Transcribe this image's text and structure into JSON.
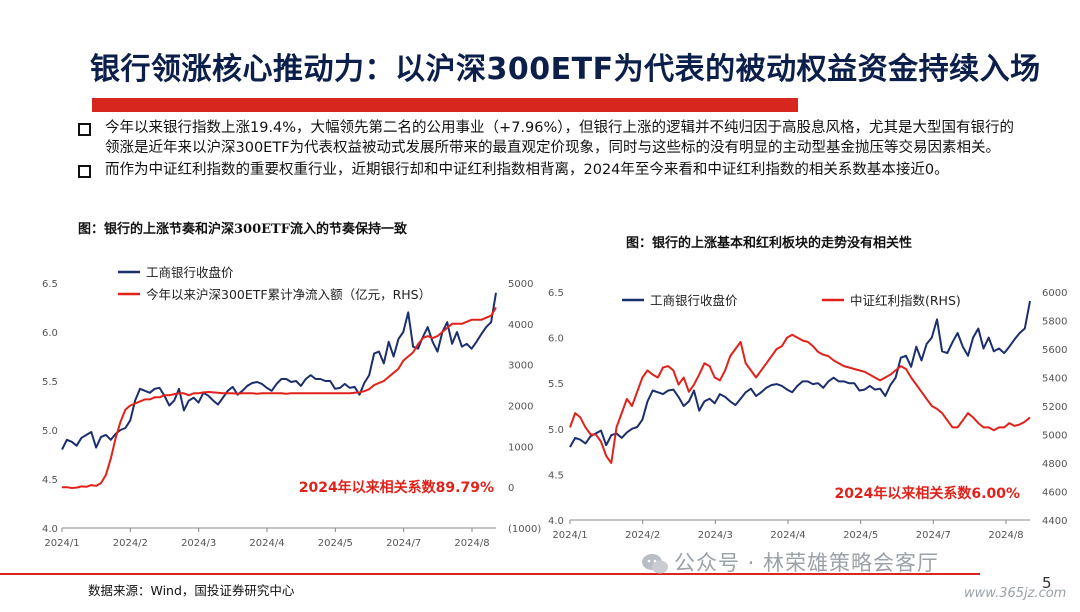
{
  "title": "银行领涨核心推动力：以沪深300ETF为代表的被动权益资金持续入场",
  "bullets": [
    "今年以来银行指数上涨19.4%，大幅领先第二名的公用事业（+7.96%），但银行上涨的逻辑并不纯归因于高股息风格，尤其是大型国有银行的领涨是近年来以沪深300ETF为代表权益被动式发展所带来的最直观定价现象，同时与这些标的没有明显的主动型基金抛压等交易因素相关。",
    "而作为中证红利指数的重要权重行业，近期银行却和中证红利指数相背离，2024年至今来看和中证红利指数的相关系数基本接近0。"
  ],
  "chart1_title": "图：银行的上涨节奏和沪深300ETF流入的节奏保持一致",
  "chart2_title": "图：银行的上涨基本和红利板块的走势没有相关性",
  "source": "数据来源：Wind，国投证券研究中心",
  "watermark": "公众号 · 林荣雄策略会客厅",
  "site": "www.365jz.com",
  "page": "5",
  "colors": {
    "navy": "#1b2f6e",
    "red": "#e0221b",
    "title_bar": "#d7261e",
    "title_text": "#0b1f4a"
  },
  "chart_data": [
    {
      "type": "line",
      "title": "图：银行的上涨节奏和沪深300ETF流入的节奏保持一致",
      "x_ticks": [
        "2024/1",
        "2024/2",
        "2024/3",
        "2024/4",
        "2024/5",
        "2024/7",
        "2024/8"
      ],
      "y_left": {
        "lim": [
          4.0,
          6.5
        ],
        "ticks": [
          "4.0",
          "4.5",
          "5.0",
          "5.5",
          "6.0",
          "6.5"
        ]
      },
      "y_right": {
        "lim": [
          -1000,
          5000
        ],
        "ticks": [
          "(1000)",
          "0",
          "1000",
          "2000",
          "3000",
          "4000",
          "5000"
        ]
      },
      "annotation": "2024年以来相关系数89.79%",
      "legend_position": "top-left",
      "series": [
        {
          "name": "工商银行收盘价",
          "axis": "left",
          "color": "#1b2f6e",
          "values": [
            4.8,
            4.9,
            4.88,
            4.84,
            4.92,
            4.95,
            4.98,
            4.82,
            4.93,
            4.95,
            4.9,
            4.96,
            5.0,
            5.02,
            5.1,
            5.3,
            5.42,
            5.4,
            5.38,
            5.42,
            5.43,
            5.35,
            5.25,
            5.3,
            5.42,
            5.2,
            5.3,
            5.33,
            5.28,
            5.38,
            5.35,
            5.3,
            5.26,
            5.33,
            5.4,
            5.44,
            5.36,
            5.4,
            5.45,
            5.48,
            5.49,
            5.47,
            5.43,
            5.4,
            5.47,
            5.52,
            5.52,
            5.49,
            5.5,
            5.45,
            5.52,
            5.56,
            5.52,
            5.52,
            5.5,
            5.5,
            5.42,
            5.43,
            5.47,
            5.43,
            5.44,
            5.36,
            5.48,
            5.56,
            5.78,
            5.8,
            5.68,
            5.9,
            5.75,
            5.93,
            6.0,
            6.2,
            5.85,
            5.83,
            5.95,
            6.05,
            5.9,
            5.8,
            6.0,
            6.1,
            5.88,
            6.0,
            5.85,
            5.88,
            5.83,
            5.9,
            5.98,
            6.05,
            6.1,
            6.4
          ]
        },
        {
          "name": "今年以来沪深300ETF累计净流入额（亿元，RHS）",
          "axis": "right",
          "color": "#e0221b",
          "values": [
            0,
            0,
            -20,
            -10,
            20,
            10,
            50,
            30,
            100,
            300,
            700,
            1200,
            1600,
            1900,
            2000,
            2050,
            2100,
            2150,
            2150,
            2200,
            2200,
            2250,
            2250,
            2280,
            2300,
            2300,
            2250,
            2300,
            2300,
            2320,
            2330,
            2320,
            2310,
            2300,
            2300,
            2300,
            2290,
            2300,
            2300,
            2300,
            2290,
            2300,
            2300,
            2300,
            2300,
            2300,
            2290,
            2300,
            2300,
            2300,
            2300,
            2300,
            2300,
            2300,
            2300,
            2300,
            2300,
            2300,
            2300,
            2300,
            2310,
            2320,
            2350,
            2400,
            2500,
            2550,
            2600,
            2700,
            2800,
            2900,
            3100,
            3200,
            3300,
            3500,
            3650,
            3700,
            3650,
            3700,
            3800,
            3900,
            4000,
            4000,
            4000,
            4050,
            4100,
            4100,
            4100,
            4150,
            4200,
            4400
          ]
        }
      ]
    },
    {
      "type": "line",
      "title": "图：银行的上涨基本和红利板块的走势没有相关性",
      "x_ticks": [
        "2024/1",
        "2024/2",
        "2024/3",
        "2024/4",
        "2024/5",
        "2024/7",
        "2024/8"
      ],
      "y_left": {
        "lim": [
          4.0,
          6.5
        ],
        "ticks": [
          "4.0",
          "4.5",
          "5.0",
          "5.5",
          "6.0",
          "6.5"
        ]
      },
      "y_right": {
        "lim": [
          4400,
          6000
        ],
        "ticks": [
          "4400",
          "4600",
          "4800",
          "5000",
          "5200",
          "5400",
          "5600",
          "5800",
          "6000"
        ]
      },
      "annotation": "2024年以来相关系数6.00%",
      "legend_position": "top",
      "series": [
        {
          "name": "工商银行收盘价",
          "axis": "left",
          "color": "#1b2f6e",
          "values": [
            4.8,
            4.9,
            4.88,
            4.84,
            4.92,
            4.95,
            4.98,
            4.82,
            4.93,
            4.95,
            4.9,
            4.96,
            5.0,
            5.02,
            5.1,
            5.3,
            5.42,
            5.4,
            5.38,
            5.42,
            5.43,
            5.35,
            5.25,
            5.3,
            5.42,
            5.2,
            5.3,
            5.33,
            5.28,
            5.38,
            5.35,
            5.3,
            5.26,
            5.33,
            5.4,
            5.44,
            5.36,
            5.4,
            5.45,
            5.48,
            5.49,
            5.47,
            5.43,
            5.4,
            5.47,
            5.52,
            5.52,
            5.49,
            5.5,
            5.45,
            5.52,
            5.56,
            5.52,
            5.52,
            5.5,
            5.5,
            5.42,
            5.43,
            5.47,
            5.43,
            5.44,
            5.36,
            5.48,
            5.56,
            5.78,
            5.8,
            5.68,
            5.9,
            5.75,
            5.93,
            6.0,
            6.2,
            5.85,
            5.83,
            5.95,
            6.05,
            5.9,
            5.8,
            6.0,
            6.1,
            5.88,
            6.0,
            5.85,
            5.88,
            5.83,
            5.9,
            5.98,
            6.05,
            6.1,
            6.4
          ]
        },
        {
          "name": "中证红利指数(RHS)",
          "axis": "right",
          "color": "#e0221b",
          "values": [
            5050,
            5150,
            5120,
            5050,
            5000,
            5000,
            4950,
            4850,
            4800,
            5050,
            5150,
            5250,
            5200,
            5300,
            5400,
            5450,
            5420,
            5400,
            5470,
            5480,
            5450,
            5350,
            5400,
            5300,
            5350,
            5420,
            5500,
            5480,
            5400,
            5380,
            5450,
            5550,
            5600,
            5650,
            5500,
            5450,
            5400,
            5450,
            5500,
            5550,
            5600,
            5620,
            5680,
            5700,
            5680,
            5660,
            5650,
            5620,
            5580,
            5560,
            5550,
            5520,
            5500,
            5480,
            5470,
            5460,
            5450,
            5440,
            5420,
            5400,
            5380,
            5400,
            5420,
            5450,
            5480,
            5460,
            5400,
            5350,
            5300,
            5250,
            5200,
            5180,
            5150,
            5100,
            5050,
            5050,
            5100,
            5150,
            5120,
            5080,
            5050,
            5050,
            5030,
            5050,
            5050,
            5080,
            5060,
            5070,
            5090,
            5120
          ]
        }
      ]
    }
  ]
}
